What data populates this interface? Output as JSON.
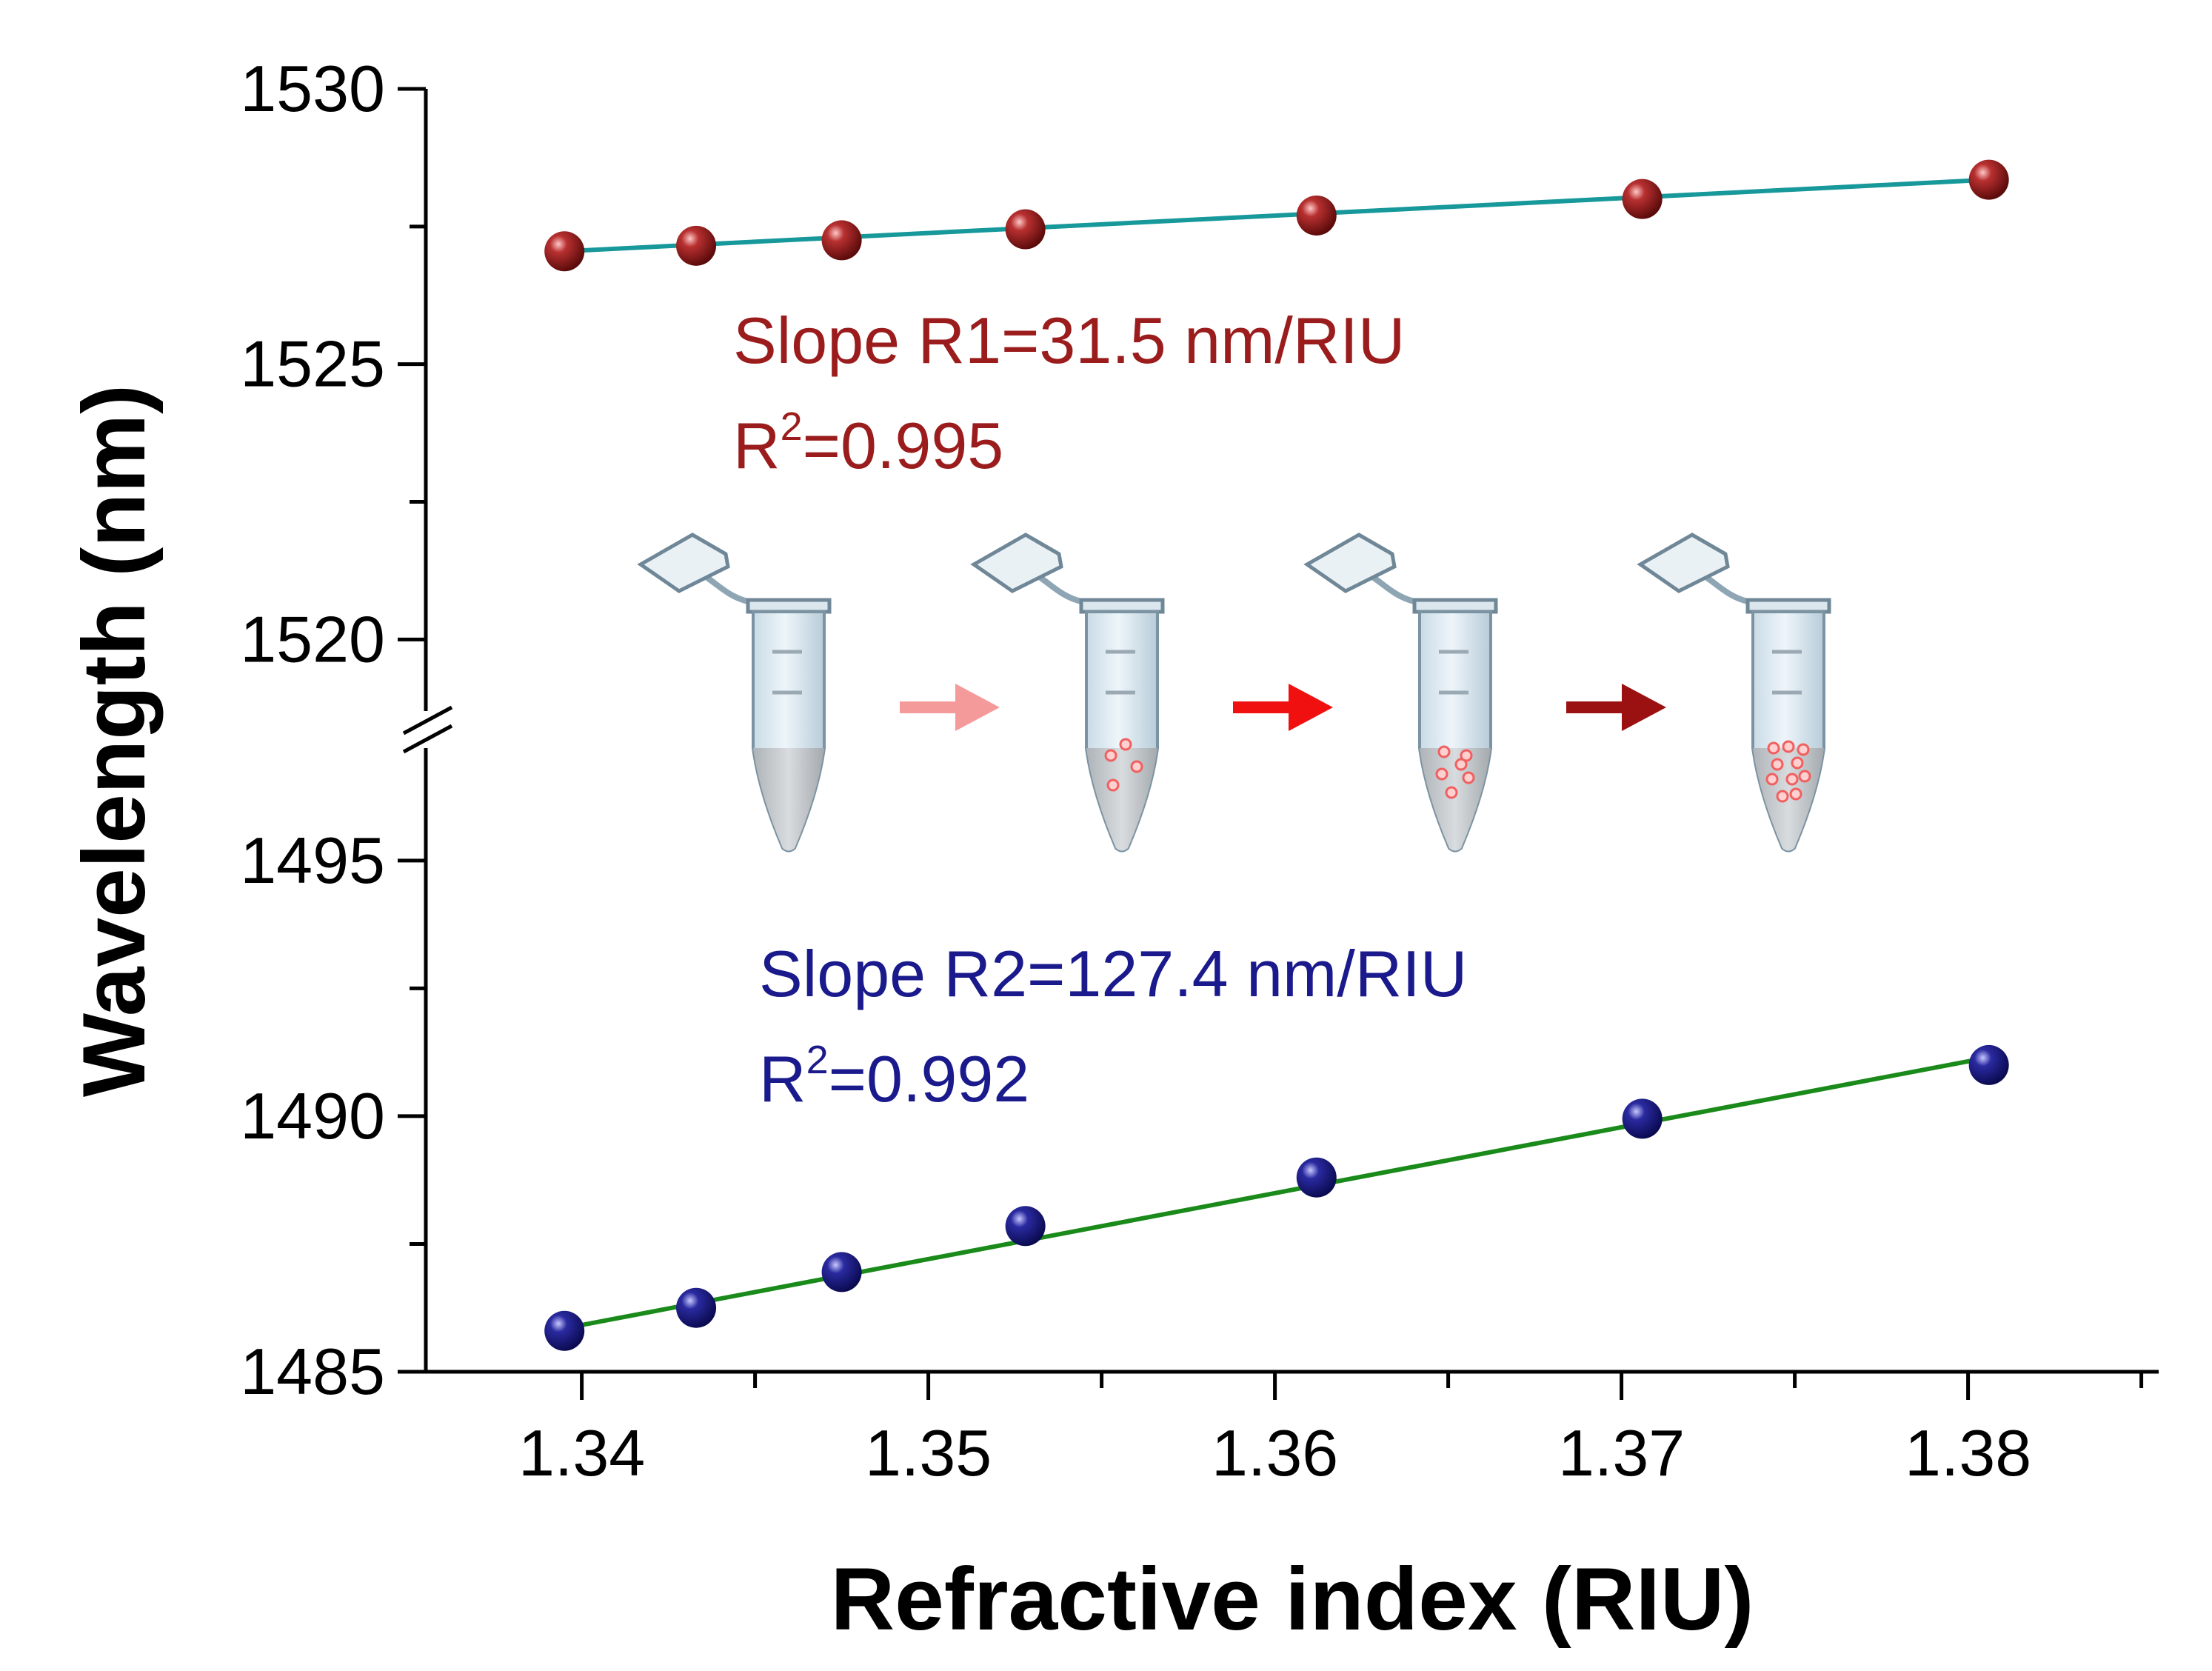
{
  "chart_data": {
    "type": "scatter",
    "xlabel": "Refractive index (RIU)",
    "ylabel": "Wavelength (nm)",
    "xlim": [
      1.3355,
      1.3855
    ],
    "x_ticks": [
      "1.34",
      "1.35",
      "1.36",
      "1.37",
      "1.38"
    ],
    "y_axis_break": true,
    "upper_segment": {
      "ylim": [
        1518.7,
        1530
      ],
      "ticks": [
        "1520",
        "1525",
        "1530"
      ]
    },
    "lower_segment": {
      "ylim": [
        1485,
        1497.2
      ],
      "ticks": [
        "1485",
        "1490",
        "1495"
      ]
    },
    "grid": false,
    "series": [
      {
        "name": "R1",
        "segment": "upper",
        "color": "#9b1c1c",
        "fit_color": "#17989a",
        "x": [
          1.3395,
          1.3433,
          1.3475,
          1.3528,
          1.3612,
          1.3706,
          1.3806
        ],
        "y": [
          1527.05,
          1527.15,
          1527.25,
          1527.45,
          1527.7,
          1528.0,
          1528.35
        ],
        "fit": {
          "x": [
            1.3395,
            1.3806
          ],
          "y": [
            1527.05,
            1528.35
          ]
        }
      },
      {
        "name": "R2",
        "segment": "lower",
        "color": "#1a1a8c",
        "fit_color": "#1a8a1a",
        "x": [
          1.3395,
          1.3433,
          1.3475,
          1.3528,
          1.3612,
          1.3706,
          1.3806
        ],
        "y": [
          1485.8,
          1486.25,
          1486.95,
          1487.85,
          1488.8,
          1489.95,
          1491.0
        ],
        "fit": {
          "x": [
            1.3395,
            1.3806
          ],
          "y": [
            1485.85,
            1491.15
          ]
        }
      }
    ],
    "annotations": {
      "r1_slope": "Slope R1=31.5 nm/RIU",
      "r1_r2_base": "R",
      "r1_r2_sup": "2",
      "r1_r2_value": "=0.995",
      "r2_slope": "Slope R2=127.4 nm/RIU",
      "r2_r2_base": "R",
      "r2_r2_sup": "2",
      "r2_r2_value": "=0.992"
    },
    "inset_tubes": {
      "arrow_colors": [
        "#f59a9a",
        "#f01010",
        "#9b1010"
      ],
      "particle_color": "#f06060",
      "liquid_color": "#bfc3c6",
      "tube_color": "#dce8ef",
      "particle_counts": [
        0,
        4,
        6,
        10
      ]
    }
  }
}
